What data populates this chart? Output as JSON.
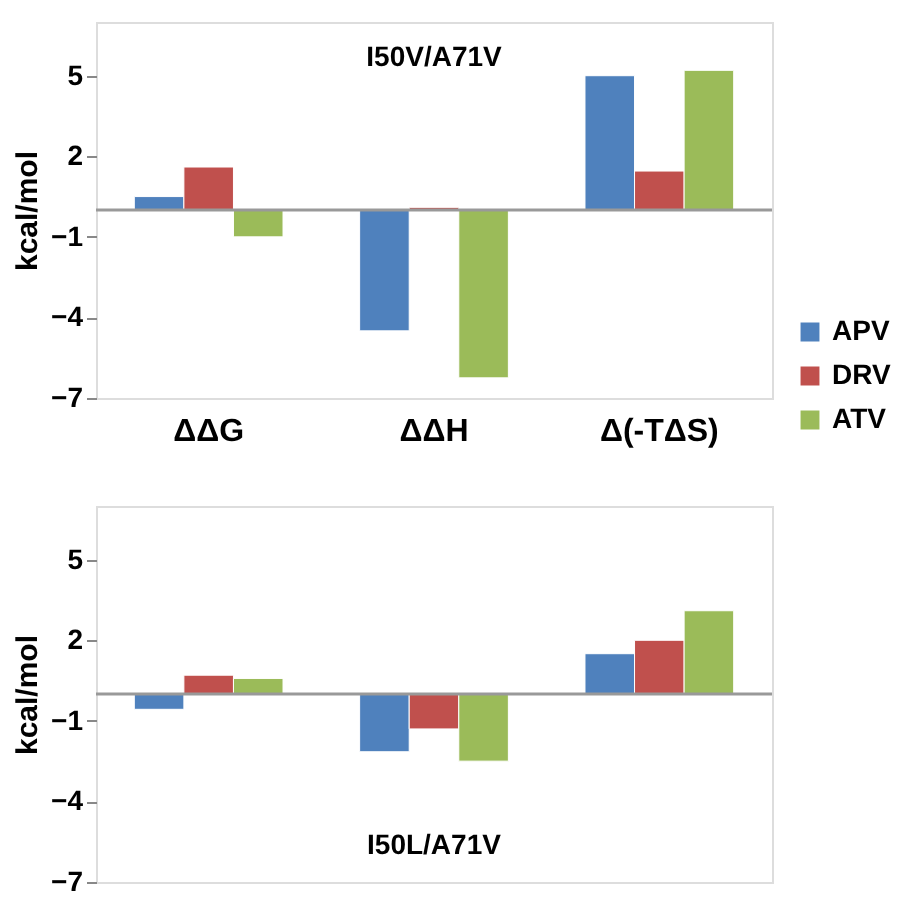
{
  "chart_data": [
    {
      "type": "bar",
      "title": "I50V/A71V",
      "ylabel": "kcal/mol",
      "categories": [
        "ΔΔG",
        "ΔΔH",
        "Δ(-TΔS)"
      ],
      "series": [
        {
          "name": "APV",
          "color": "#4f81bd",
          "values": [
            0.5,
            -4.5,
            5.0
          ]
        },
        {
          "name": "DRV",
          "color": "#c0504d",
          "values": [
            1.6,
            0.1,
            1.45
          ]
        },
        {
          "name": "ATV",
          "color": "#9bbb59",
          "values": [
            -1.0,
            -6.25,
            5.2
          ]
        }
      ],
      "ylim": [
        -7,
        7
      ],
      "yticks": [
        5,
        2,
        -1,
        -4,
        -7
      ],
      "grid": false,
      "legend": "right"
    },
    {
      "type": "bar",
      "title": "I50L/A71V",
      "ylabel": "kcal/mol",
      "categories": [
        null,
        null,
        null
      ],
      "series": [
        {
          "color": "#4f81bd",
          "values": [
            -0.57,
            -2.15,
            1.5
          ]
        },
        {
          "color": "#c0504d",
          "values": [
            0.7,
            -1.3,
            2.0
          ]
        },
        {
          "color": "#9bbb59",
          "values": [
            0.58,
            -2.5,
            3.1
          ]
        }
      ],
      "ylim": [
        -7,
        7
      ],
      "yticks": [
        5,
        2,
        -1,
        -4,
        -7
      ],
      "grid": false,
      "legend": false,
      "tick_labels": "y"
    }
  ]
}
